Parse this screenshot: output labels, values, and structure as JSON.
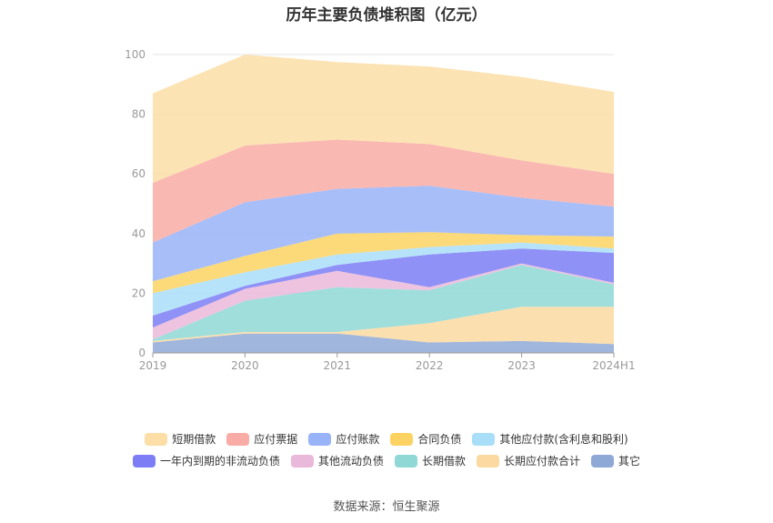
{
  "chart_data": {
    "type": "area",
    "stacked": true,
    "title": "历年主要负债堆积图（亿元）",
    "categories": [
      "2019",
      "2020",
      "2021",
      "2022",
      "2023",
      "2024H1"
    ],
    "ylim": [
      0,
      100
    ],
    "yticks": [
      0,
      20,
      40,
      60,
      80,
      100
    ],
    "grid": true,
    "legend_position": "bottom",
    "series": [
      {
        "name": "其它",
        "color": "#8fa9d6",
        "values": [
          3.5,
          6.5,
          6.5,
          3.5,
          4.0,
          3.0
        ]
      },
      {
        "name": "长期应付款合计",
        "color": "#fbd9a0",
        "values": [
          0.5,
          0.5,
          0.5,
          6.5,
          11.5,
          12.5
        ]
      },
      {
        "name": "长期借款",
        "color": "#8fd8d6",
        "values": [
          0.5,
          10.5,
          15.0,
          11.0,
          14.0,
          7.5
        ]
      },
      {
        "name": "其他流动负债",
        "color": "#eab8da",
        "values": [
          4.0,
          4.0,
          5.5,
          1.0,
          0.5,
          0.5
        ]
      },
      {
        "name": "一年内到期的非流动负债",
        "color": "#7d7ef5",
        "values": [
          4.0,
          1.0,
          2.0,
          11.0,
          5.0,
          10.0
        ]
      },
      {
        "name": "其他应付款(含利息和股利)",
        "color": "#a9def8",
        "values": [
          7.5,
          4.5,
          3.5,
          2.5,
          2.0,
          1.5
        ]
      },
      {
        "name": "合同负债",
        "color": "#fcd363",
        "values": [
          4.0,
          5.5,
          7.0,
          5.0,
          2.5,
          4.0
        ]
      },
      {
        "name": "应付账款",
        "color": "#98b3f8",
        "values": [
          13.0,
          18.0,
          15.0,
          15.5,
          12.5,
          10.0
        ]
      },
      {
        "name": "应付票据",
        "color": "#f9aca5",
        "values": [
          20.0,
          19.0,
          16.5,
          14.0,
          12.5,
          11.0
        ]
      },
      {
        "name": "短期借款",
        "color": "#fcdea6",
        "values": [
          30.0,
          30.5,
          26.0,
          26.0,
          28.0,
          27.5
        ]
      }
    ]
  },
  "legend_rows": [
    [
      "短期借款",
      "应付票据",
      "应付账款",
      "合同负债",
      "其他应付款(含利息和股利)"
    ],
    [
      "一年内到期的非流动负债",
      "其他流动负债",
      "长期借款",
      "长期应付款合计",
      "其它"
    ]
  ],
  "source": "数据来源：恒生聚源"
}
